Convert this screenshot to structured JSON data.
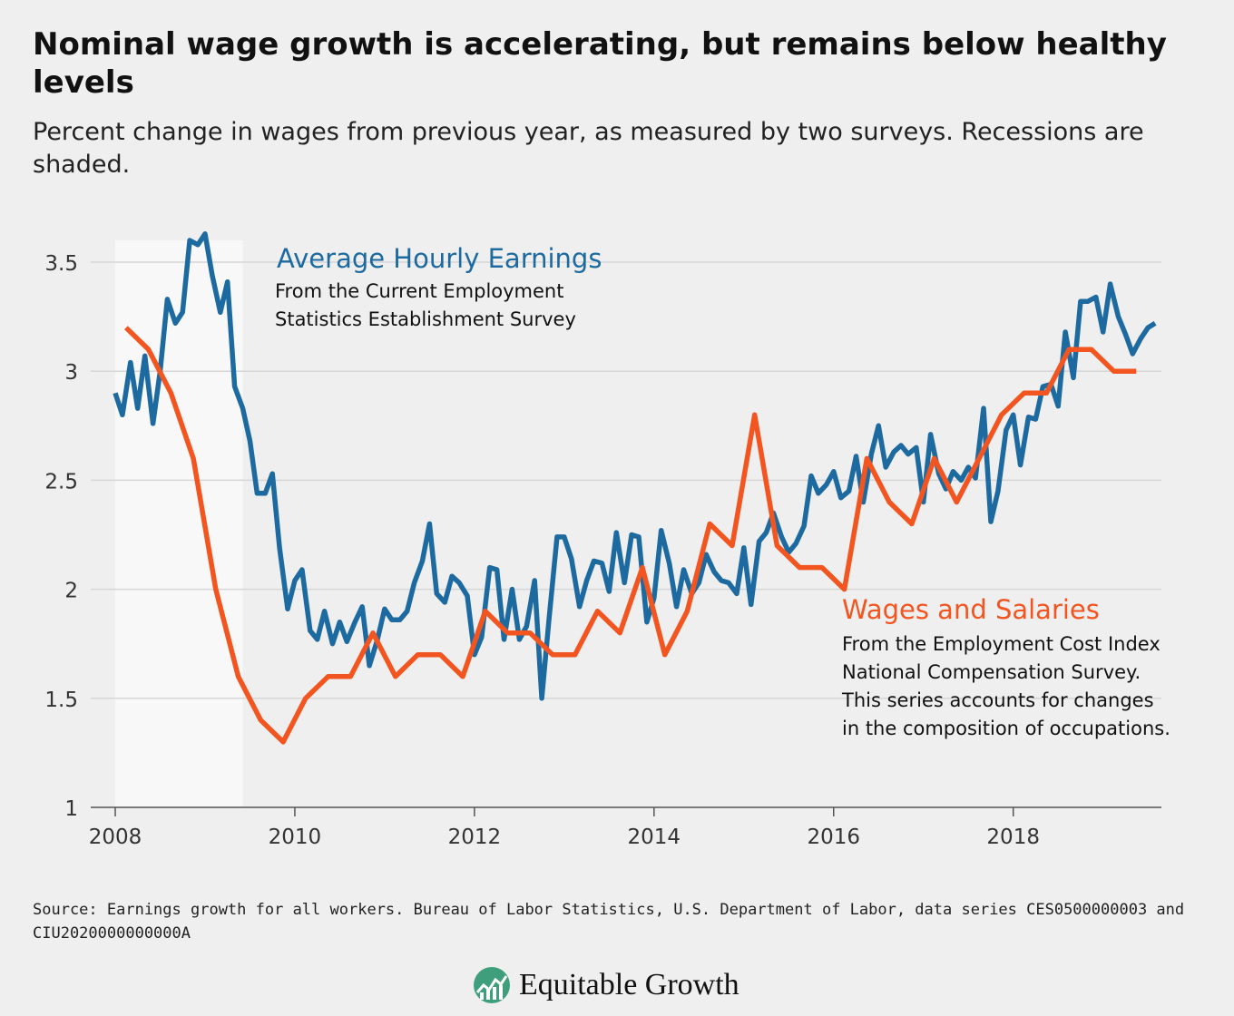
{
  "title": "Nominal wage growth is accelerating, but remains below healthy levels",
  "subtitle": "Percent change in wages from previous year, as measured by two surveys. Recessions are shaded.",
  "source": "Source: Earnings growth for all workers. Bureau of Labor Statistics, U.S. Department of Labor, data series CES0500000003 and CIU2020000000000A",
  "brand": "Equitable Growth",
  "colors": {
    "background": "#efefef",
    "recession": "#f8f8f8",
    "grid": "#d6d6d6",
    "ahe": "#1d6aa0",
    "wages": "#f2551f",
    "logo_circle": "#3f9f7c"
  },
  "chart_data": {
    "type": "line",
    "xlim": [
      2008,
      2019.65
    ],
    "ylim": [
      1,
      3.6
    ],
    "xticks": [
      "2008",
      "2010",
      "2012",
      "2014",
      "2016",
      "2018"
    ],
    "yticks": [
      "1",
      "1.5",
      "2",
      "2.5",
      "3",
      "3.5"
    ],
    "grid": true,
    "recessions": [
      {
        "start": 2008.0,
        "end": 2009.42
      }
    ],
    "series": [
      {
        "name": "Average Hourly Earnings",
        "note": [
          "From the Current Employment",
          "Statistics Establishment Survey"
        ],
        "color": "#1d6aa0",
        "x": [
          2008.0,
          2008.08,
          2008.17,
          2008.25,
          2008.33,
          2008.42,
          2008.5,
          2008.58,
          2008.67,
          2008.75,
          2008.83,
          2008.92,
          2009.0,
          2009.08,
          2009.17,
          2009.25,
          2009.33,
          2009.42,
          2009.5,
          2009.58,
          2009.67,
          2009.75,
          2009.83,
          2009.92,
          2010.0,
          2010.08,
          2010.17,
          2010.25,
          2010.33,
          2010.42,
          2010.5,
          2010.58,
          2010.67,
          2010.75,
          2010.83,
          2010.92,
          2011.0,
          2011.08,
          2011.17,
          2011.25,
          2011.33,
          2011.42,
          2011.5,
          2011.58,
          2011.67,
          2011.75,
          2011.83,
          2011.92,
          2012.0,
          2012.08,
          2012.17,
          2012.25,
          2012.33,
          2012.42,
          2012.5,
          2012.58,
          2012.67,
          2012.75,
          2012.83,
          2012.92,
          2013.0,
          2013.08,
          2013.17,
          2013.25,
          2013.33,
          2013.42,
          2013.5,
          2013.58,
          2013.67,
          2013.75,
          2013.83,
          2013.92,
          2014.0,
          2014.08,
          2014.17,
          2014.25,
          2014.33,
          2014.42,
          2014.5,
          2014.58,
          2014.67,
          2014.75,
          2014.83,
          2014.92,
          2015.0,
          2015.08,
          2015.17,
          2015.25,
          2015.33,
          2015.42,
          2015.5,
          2015.58,
          2015.67,
          2015.75,
          2015.83,
          2015.92,
          2016.0,
          2016.08,
          2016.17,
          2016.25,
          2016.33,
          2016.42,
          2016.5,
          2016.58,
          2016.67,
          2016.75,
          2016.83,
          2016.92,
          2017.0,
          2017.08,
          2017.17,
          2017.25,
          2017.33,
          2017.42,
          2017.5,
          2017.58,
          2017.67,
          2017.75,
          2017.83,
          2017.92,
          2018.0,
          2018.08,
          2018.17,
          2018.25,
          2018.33,
          2018.42,
          2018.5,
          2018.58,
          2018.67,
          2018.75,
          2018.83,
          2018.92,
          2019.0,
          2019.08,
          2019.17,
          2019.25,
          2019.33,
          2019.42,
          2019.5,
          2019.58
        ],
        "y": [
          2.9,
          2.8,
          3.04,
          2.83,
          3.07,
          2.76,
          3.0,
          3.33,
          3.22,
          3.27,
          3.6,
          3.58,
          3.63,
          3.44,
          3.27,
          3.41,
          2.93,
          2.83,
          2.68,
          2.44,
          2.44,
          2.53,
          2.19,
          1.91,
          2.04,
          2.09,
          1.81,
          1.77,
          1.9,
          1.75,
          1.85,
          1.76,
          1.85,
          1.92,
          1.65,
          1.77,
          1.91,
          1.86,
          1.86,
          1.9,
          2.03,
          2.13,
          2.3,
          1.98,
          1.94,
          2.06,
          2.03,
          1.97,
          1.7,
          1.78,
          2.1,
          2.09,
          1.77,
          2.0,
          1.77,
          1.83,
          2.04,
          1.5,
          1.86,
          2.24,
          2.24,
          2.14,
          1.92,
          2.04,
          2.13,
          2.12,
          1.99,
          2.26,
          2.03,
          2.25,
          2.24,
          1.85,
          1.96,
          2.27,
          2.12,
          1.92,
          2.09,
          1.98,
          2.03,
          2.16,
          2.08,
          2.04,
          2.03,
          1.98,
          2.19,
          1.93,
          2.22,
          2.26,
          2.35,
          2.24,
          2.17,
          2.21,
          2.29,
          2.52,
          2.44,
          2.48,
          2.54,
          2.42,
          2.45,
          2.61,
          2.4,
          2.62,
          2.75,
          2.56,
          2.63,
          2.66,
          2.62,
          2.65,
          2.4,
          2.71,
          2.53,
          2.46,
          2.54,
          2.5,
          2.56,
          2.51,
          2.83,
          2.31,
          2.45,
          2.73,
          2.8,
          2.57,
          2.79,
          2.78,
          2.93,
          2.94,
          2.84,
          3.18,
          2.97,
          3.32,
          3.32,
          3.34,
          3.18,
          3.4,
          3.25,
          3.17,
          3.08,
          3.15,
          3.2,
          3.22
        ]
      },
      {
        "name": "Wages and Salaries",
        "note": [
          "From the Employment Cost Index",
          "National Compensation Survey.",
          "This series accounts for changes",
          "in the composition of occupations."
        ],
        "color": "#f2551f",
        "x": [
          2008.12,
          2008.37,
          2008.62,
          2008.87,
          2009.12,
          2009.37,
          2009.62,
          2009.87,
          2010.12,
          2010.37,
          2010.62,
          2010.87,
          2011.12,
          2011.37,
          2011.62,
          2011.87,
          2012.12,
          2012.37,
          2012.62,
          2012.87,
          2013.12,
          2013.37,
          2013.62,
          2013.87,
          2014.12,
          2014.37,
          2014.62,
          2014.87,
          2015.12,
          2015.37,
          2015.62,
          2015.87,
          2016.12,
          2016.37,
          2016.62,
          2016.87,
          2017.12,
          2017.37,
          2017.62,
          2017.87,
          2018.12,
          2018.37,
          2018.62,
          2018.87,
          2019.12,
          2019.37
        ],
        "y": [
          3.2,
          3.1,
          2.9,
          2.6,
          2.0,
          1.6,
          1.4,
          1.3,
          1.5,
          1.6,
          1.6,
          1.8,
          1.6,
          1.7,
          1.7,
          1.6,
          1.9,
          1.8,
          1.8,
          1.7,
          1.7,
          1.9,
          1.8,
          2.1,
          1.7,
          1.9,
          2.3,
          2.2,
          2.8,
          2.2,
          2.1,
          2.1,
          2.0,
          2.6,
          2.4,
          2.3,
          2.6,
          2.4,
          2.6,
          2.8,
          2.9,
          2.9,
          3.1,
          3.1,
          3.0,
          3.0
        ]
      }
    ]
  }
}
